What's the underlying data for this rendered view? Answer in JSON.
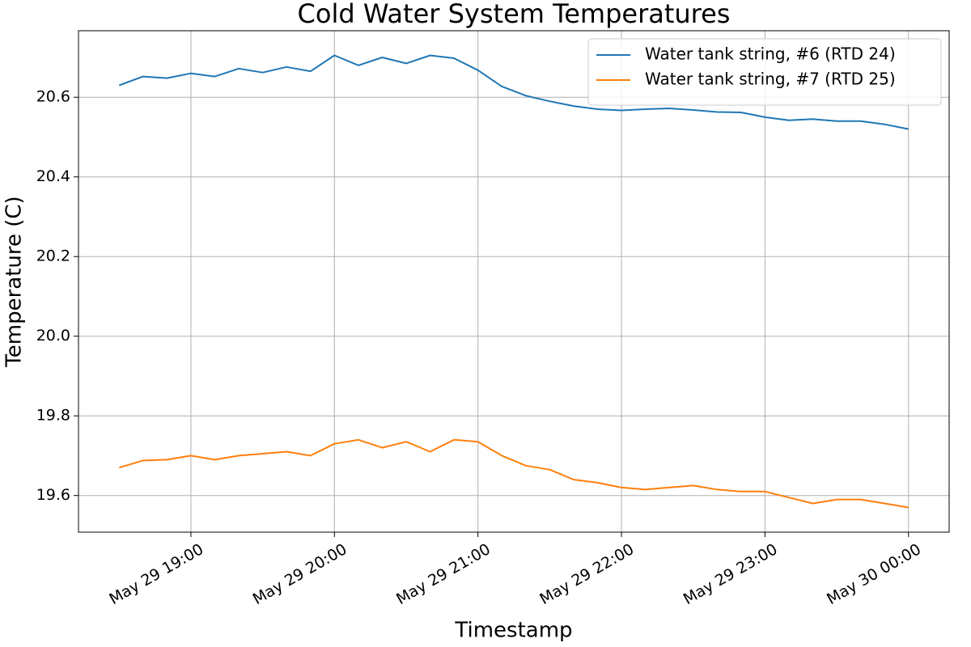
{
  "chart_data": {
    "type": "line",
    "title": "Cold Water System Temperatures",
    "x_label": "Timestamp",
    "y_label": "Temperature (C)",
    "x": [
      "May 29 18:30",
      "May 29 18:40",
      "May 29 18:50",
      "May 29 19:00",
      "May 29 19:10",
      "May 29 19:20",
      "May 29 19:30",
      "May 29 19:40",
      "May 29 19:50",
      "May 29 20:00",
      "May 29 20:10",
      "May 29 20:20",
      "May 29 20:30",
      "May 29 20:40",
      "May 29 20:50",
      "May 29 21:00",
      "May 29 21:10",
      "May 29 21:20",
      "May 29 21:30",
      "May 29 21:40",
      "May 29 21:50",
      "May 29 22:00",
      "May 29 22:10",
      "May 29 22:20",
      "May 29 22:30",
      "May 29 22:40",
      "May 29 22:50",
      "May 29 23:00",
      "May 29 23:10",
      "May 29 23:20",
      "May 29 23:30",
      "May 29 23:40",
      "May 29 23:50",
      "May 30 00:00"
    ],
    "series": [
      {
        "name": "Water tank string, #6 (RTD 24)",
        "color": "#1f77b4",
        "values": [
          20.63,
          20.652,
          20.648,
          20.66,
          20.652,
          20.672,
          20.662,
          20.676,
          20.665,
          20.705,
          20.68,
          20.7,
          20.685,
          20.705,
          20.698,
          20.668,
          20.627,
          20.604,
          20.59,
          20.578,
          20.57,
          20.567,
          20.57,
          20.572,
          20.568,
          20.563,
          20.562,
          20.55,
          20.542,
          20.545,
          20.54,
          20.54,
          20.532,
          20.52
        ]
      },
      {
        "name": "Water tank string, #7 (RTD 25)",
        "color": "#ff7f0e",
        "values": [
          19.67,
          19.688,
          19.69,
          19.7,
          19.69,
          19.7,
          19.705,
          19.71,
          19.7,
          19.73,
          19.74,
          19.72,
          19.735,
          19.71,
          19.74,
          19.735,
          19.7,
          19.675,
          19.665,
          19.64,
          19.632,
          19.62,
          19.615,
          19.62,
          19.625,
          19.615,
          19.61,
          19.61,
          19.595,
          19.58,
          19.59,
          19.59,
          19.58,
          19.57
        ]
      }
    ],
    "xlim": [
      "May 29 18:13",
      "May 30 00:17"
    ],
    "xticks": [
      "May 29 19:00",
      "May 29 20:00",
      "May 29 21:00",
      "May 29 22:00",
      "May 29 23:00",
      "May 30 00:00"
    ],
    "ylim": [
      19.508,
      20.767
    ],
    "yticks": [
      19.6,
      19.8,
      {
        "value": 20,
        "label": "20.0"
      },
      20.2,
      20.4,
      20.6
    ],
    "grid": true,
    "legend": "upper right"
  }
}
